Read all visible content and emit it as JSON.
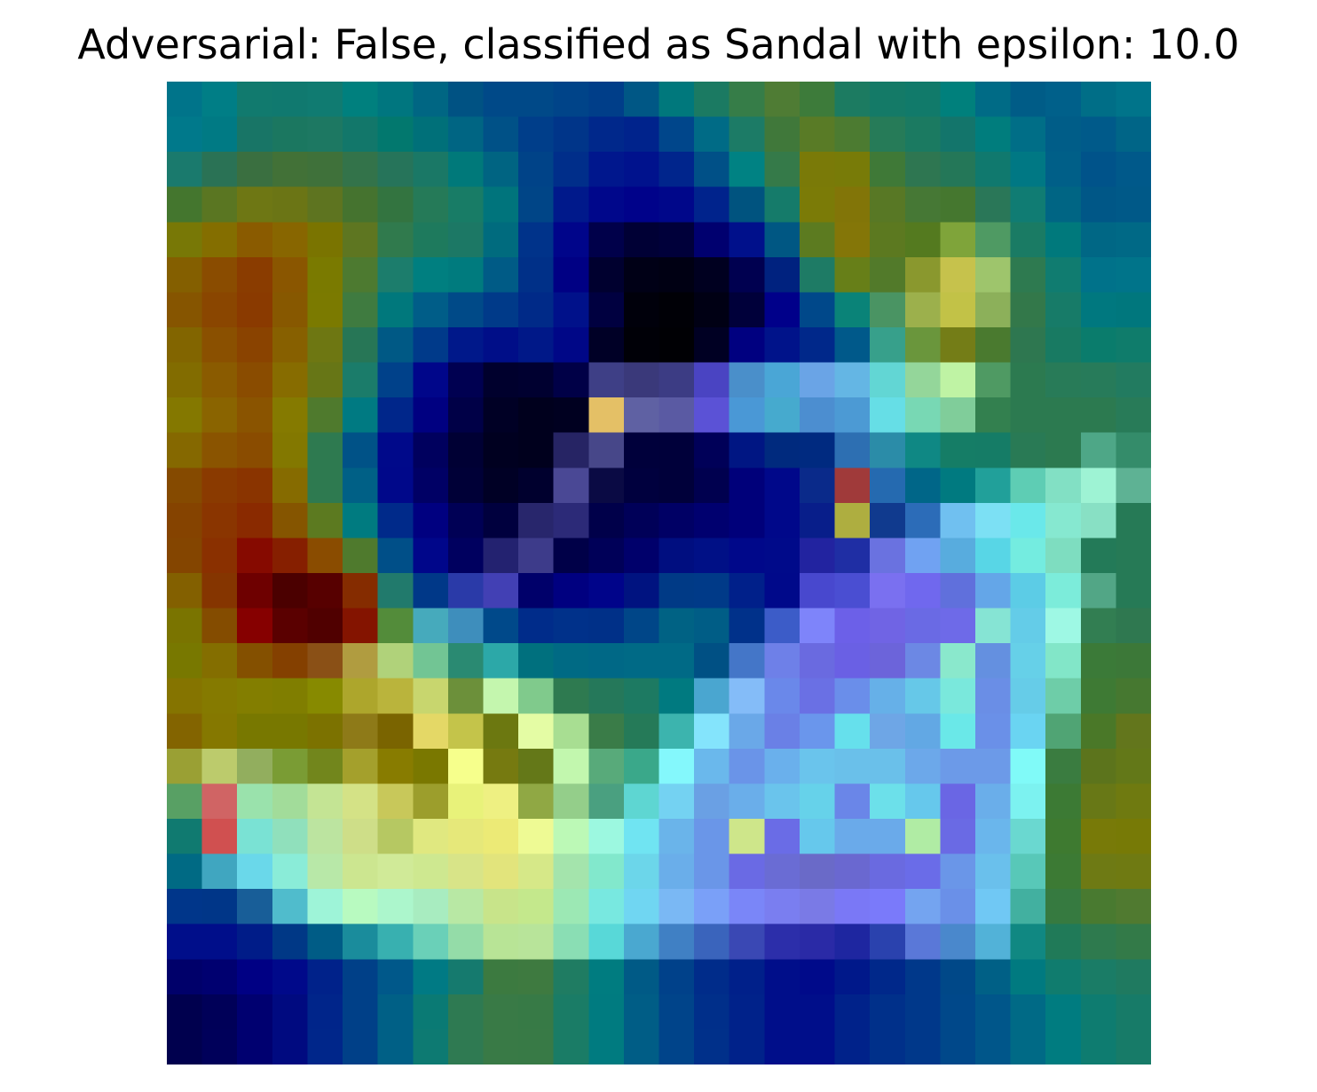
{
  "figure": {
    "title": "Adversarial: False, classified as Sandal with epsilon: 10.0"
  },
  "chart_data": {
    "type": "heatmap",
    "title": "Adversarial: False, classified as Sandal with epsilon: 10.0",
    "rows": 28,
    "cols": 28,
    "axes_visible": false,
    "colorbar": false,
    "cells": [
      [
        "#00748a",
        "#007e86",
        "#117a6e",
        "#10796f",
        "#107b71",
        "#00807e",
        "#00767f",
        "#006683",
        "#005283",
        "#004988",
        "#004988",
        "#004489",
        "#003e89",
        "#005785",
        "#00787c",
        "#1b7a62",
        "#367d48",
        "#4f7c34",
        "#3d7b3a",
        "#1c7b61",
        "#147a67",
        "#117a6a",
        "#00807c",
        "#006b86",
        "#005c87",
        "#00608a",
        "#006e87",
        "#00748a"
      ],
      [
        "#00798b",
        "#007a84",
        "#187566",
        "#1b7760",
        "#1d7862",
        "#12776a",
        "#02786e",
        "#007079",
        "#006583",
        "#005187",
        "#003e8a",
        "#003589",
        "#00288b",
        "#00238c",
        "#00468b",
        "#006b86",
        "#1c7b66",
        "#40783a",
        "#597b26",
        "#4c7b31",
        "#267b58",
        "#1b7a61",
        "#13756b",
        "#007d7d",
        "#006e87",
        "#005d88",
        "#005a8a",
        "#006587"
      ],
      [
        "#1a7a6d",
        "#2a7255",
        "#3a6f40",
        "#427137",
        "#3f713a",
        "#33734a",
        "#26745a",
        "#1a7866",
        "#00797a",
        "#006482",
        "#004388",
        "#002e8a",
        "#00178d",
        "#00128d",
        "#00258c",
        "#005087",
        "#008283",
        "#357a49",
        "#7a7a08",
        "#787b08",
        "#3f7937",
        "#2e7651",
        "#247758",
        "#10796e",
        "#007884",
        "#005f88",
        "#00538a",
        "#00598a"
      ],
      [
        "#44762e",
        "#5a7622",
        "#6e7714",
        "#6b7515",
        "#5e7420",
        "#45732f",
        "#337440",
        "#257a58",
        "#187c66",
        "#00747c",
        "#004587",
        "#00198b",
        "#00078b",
        "#00028a",
        "#00078a",
        "#00238c",
        "#00537f",
        "#157b6a",
        "#7b7b07",
        "#827508",
        "#587825",
        "#467835",
        "#45772f",
        "#2a7758",
        "#107c73",
        "#006584",
        "#005787",
        "#005988"
      ],
      [
        "#787806",
        "#846e00",
        "#8a5b00",
        "#886600",
        "#7a7400",
        "#5e7621",
        "#307a4d",
        "#1e7a5d",
        "#1c7865",
        "#006b7e",
        "#00338a",
        "#00058a",
        "#00004a",
        "#000035",
        "#00003a",
        "#00006f",
        "#00108b",
        "#005783",
        "#5c7b20",
        "#847608",
        "#5c7920",
        "#547a1f",
        "#7fa43a",
        "#4f9a63",
        "#1a7b64",
        "#00797c",
        "#006785",
        "#006986"
      ],
      [
        "#845f00",
        "#8a4c00",
        "#8a3c00",
        "#8a5600",
        "#7a7a00",
        "#4d7a30",
        "#1c7d6c",
        "#007f80",
        "#007b7e",
        "#005b86",
        "#003088",
        "#000084",
        "#00002f",
        "#000016",
        "#000013",
        "#000020",
        "#000050",
        "#00227f",
        "#1e7b65",
        "#677f18",
        "#527a2a",
        "#8a982e",
        "#c6c24c",
        "#9ec56c",
        "#2e7a50",
        "#107c70",
        "#00728a",
        "#00748a"
      ],
      [
        "#865500",
        "#8a4600",
        "#8a3a00",
        "#875800",
        "#7b7a00",
        "#3f7b40",
        "#00787c",
        "#005d88",
        "#004a88",
        "#003a89",
        "#002a88",
        "#00118a",
        "#000040",
        "#00000b",
        "#000006",
        "#000014",
        "#00003a",
        "#00008a",
        "#00488a",
        "#0a8378",
        "#4a9463",
        "#9cb04c",
        "#c2c247",
        "#8cb05a",
        "#33784a",
        "#177b68",
        "#00787f",
        "#00777d"
      ],
      [
        "#826500",
        "#8a5000",
        "#8a4300",
        "#876000",
        "#6e7712",
        "#277656",
        "#005985",
        "#003a8a",
        "#00188a",
        "#000e88",
        "#001888",
        "#000787",
        "#000026",
        "#000007",
        "#000004",
        "#000023",
        "#000080",
        "#00138a",
        "#00288a",
        "#00598a",
        "#37a08b",
        "#6a963c",
        "#747d17",
        "#4a7a2f",
        "#2e7750",
        "#187a62",
        "#0a7c6c",
        "#0f7c6b"
      ],
      [
        "#826c00",
        "#8a5b00",
        "#8a4c00",
        "#876c00",
        "#677616",
        "#1b7c6a",
        "#00418a",
        "#00068a",
        "#000051",
        "#00002d",
        "#000030",
        "#000047",
        "#3e3f86",
        "#3a397a",
        "#3c3c84",
        "#4a44c2",
        "#4a8fca",
        "#4aa6d6",
        "#6aa4e6",
        "#64b6e4",
        "#62d6d4",
        "#94d69a",
        "#bff3a4",
        "#4f9a63",
        "#2c7a50",
        "#287b58",
        "#277b5a",
        "#227b60"
      ],
      [
        "#847800",
        "#8a6400",
        "#8a5400",
        "#857a00",
        "#4f7a2d",
        "#007a82",
        "#00268a",
        "#000081",
        "#000047",
        "#000025",
        "#00001d",
        "#000020",
        "#e4c066",
        "#5f61a3",
        "#5a5aa3",
        "#5b52d6",
        "#4a98d6",
        "#46aace",
        "#4c8ed0",
        "#4c9ad4",
        "#66dee6",
        "#78d8b4",
        "#80cd9a",
        "#33804f",
        "#2c7a50",
        "#2c7a50",
        "#2c7a50",
        "#287b58"
      ],
      [
        "#856800",
        "#8a5400",
        "#8a4c00",
        "#837800",
        "#2e7a50",
        "#005287",
        "#00098a",
        "#00005e",
        "#000034",
        "#000020",
        "#00001d",
        "#262464",
        "#474789",
        "#00003b",
        "#00003a",
        "#000058",
        "#001683",
        "#002a7e",
        "#002a80",
        "#2d6fb2",
        "#2b8ca8",
        "#0f8884",
        "#157d66",
        "#157c66",
        "#297a55",
        "#2c7a50",
        "#4ea787",
        "#348c6a"
      ],
      [
        "#854a00",
        "#8a3a00",
        "#8a3400",
        "#866b00",
        "#2e7a50",
        "#006086",
        "#00088a",
        "#000065",
        "#000037",
        "#000025",
        "#00002e",
        "#4a4895",
        "#0a0a44",
        "#00003e",
        "#00003a",
        "#00004f",
        "#00007a",
        "#00088a",
        "#0a2a8a",
        "#a03a3a",
        "#256ab0",
        "#006688",
        "#007a80",
        "#21a09a",
        "#5ecdb4",
        "#82e0c4",
        "#9ef3d4",
        "#5eb294"
      ],
      [
        "#854300",
        "#8a3500",
        "#8a2a00",
        "#855500",
        "#5c7a20",
        "#007b80",
        "#002a8a",
        "#000080",
        "#000055",
        "#00003e",
        "#28266c",
        "#2c2a78",
        "#00004a",
        "#000058",
        "#000065",
        "#00006f",
        "#00007a",
        "#00088a",
        "#081e8a",
        "#aeae40",
        "#103a8e",
        "#2c6cb8",
        "#70c0f0",
        "#7ce0f4",
        "#6ae8ea",
        "#86e8d0",
        "#88e0c4",
        "#267a56"
      ],
      [
        "#844500",
        "#8a3000",
        "#860a00",
        "#861f00",
        "#8a4c00",
        "#4f7a2d",
        "#004f88",
        "#00068a",
        "#00005f",
        "#232270",
        "#3d3b8a",
        "#000048",
        "#000058",
        "#00006b",
        "#000e80",
        "#001086",
        "#00088a",
        "#000a8a",
        "#2223a0",
        "#1f2ea4",
        "#6a72e0",
        "#70a2f2",
        "#58acde",
        "#58d6e6",
        "#74ece0",
        "#7eddc0",
        "#237a58",
        "#267a56"
      ],
      [
        "#836000",
        "#853500",
        "#6e0000",
        "#4b0000",
        "#570000",
        "#852c00",
        "#217a6c",
        "#003888",
        "#2a3aa8",
        "#4240b4",
        "#00006a",
        "#000080",
        "#00048a",
        "#001380",
        "#003a86",
        "#003a88",
        "#00208a",
        "#00098a",
        "#4848ce",
        "#4a4ed2",
        "#7a70f0",
        "#7068ee",
        "#6070dc",
        "#64a6e8",
        "#5ccce6",
        "#7cecda",
        "#52a686",
        "#267a56"
      ],
      [
        "#7a7400",
        "#844c00",
        "#860000",
        "#5a0000",
        "#500000",
        "#841400",
        "#538c3a",
        "#46aabc",
        "#3e8ebc",
        "#00498a",
        "#002c8a",
        "#00318a",
        "#003088",
        "#004688",
        "#006284",
        "#005d86",
        "#00318a",
        "#3c5cc8",
        "#7e84fa",
        "#6c60e8",
        "#7064e4",
        "#6a6ae4",
        "#6e6ae8",
        "#86e4d4",
        "#64cce8",
        "#9ef8e4",
        "#327e52",
        "#2f7850"
      ],
      [
        "#787800",
        "#846e00",
        "#845000",
        "#844000",
        "#8a5016",
        "#b09c40",
        "#b0d27a",
        "#72c594",
        "#2a8a72",
        "#2ca8a8",
        "#00707e",
        "#006a84",
        "#006886",
        "#006a86",
        "#006a86",
        "#005084",
        "#4476c8",
        "#6e80e8",
        "#6a6ae0",
        "#6a60e4",
        "#6c64da",
        "#6c88e4",
        "#8ae8cc",
        "#6490e0",
        "#66d0e8",
        "#82e6c8",
        "#3b7a38",
        "#3c7838"
      ],
      [
        "#857400",
        "#857a00",
        "#837e00",
        "#807e00",
        "#878a00",
        "#ada62c",
        "#bab43c",
        "#c8d66e",
        "#6c903a",
        "#c4f6ae",
        "#80ca8c",
        "#2e7a50",
        "#25785a",
        "#1d7a62",
        "#007a80",
        "#4aa6d0",
        "#84bcf8",
        "#6a88ea",
        "#6a70e4",
        "#6a8eea",
        "#66b0e8",
        "#66c8e8",
        "#7ae8dc",
        "#6a8ee6",
        "#66cce8",
        "#6ecda8",
        "#3e7a34",
        "#467830"
      ],
      [
        "#836400",
        "#857800",
        "#787800",
        "#787800",
        "#7c7200",
        "#8e7a18",
        "#7a6400",
        "#e4d866",
        "#c4c44a",
        "#6c7810",
        "#e4fca4",
        "#a8de92",
        "#3a7c48",
        "#257a58",
        "#3cb4ae",
        "#84e4fc",
        "#6aa8e8",
        "#6a80e6",
        "#6a96ec",
        "#66e0ec",
        "#6ea6e6",
        "#62a8e4",
        "#6ae8e8",
        "#6a90e8",
        "#6ad4f2",
        "#50a474",
        "#4a7828",
        "#63761c"
      ],
      [
        "#9aa034",
        "#bccb6c",
        "#92ae5e",
        "#7a9c34",
        "#72861c",
        "#a4a02c",
        "#887c00",
        "#7a7800",
        "#f6ff8c",
        "#767a10",
        "#647818",
        "#c2f7ae",
        "#58aa7a",
        "#3aa88a",
        "#84f8fc",
        "#6ab8ec",
        "#6a94e8",
        "#6ab0ec",
        "#6ac4ec",
        "#6ac0ea",
        "#6ac0ea",
        "#6ca8ea",
        "#6c9ae8",
        "#6c9ae8",
        "#80faf8",
        "#3a7c40",
        "#5c741c",
        "#637818"
      ],
      [
        "#58a064",
        "#d06464",
        "#9ae2ac",
        "#a2dc9a",
        "#c4e494",
        "#d4e286",
        "#c8c85a",
        "#9c9e2c",
        "#e8f27a",
        "#eef082",
        "#90a844",
        "#94ce8a",
        "#4aa080",
        "#5ed6d2",
        "#74d2f2",
        "#6aa0e4",
        "#6aaeea",
        "#6ac4ec",
        "#66d2ea",
        "#6a86e8",
        "#6ce0ea",
        "#66c8ec",
        "#6a66e4",
        "#6aaeea",
        "#7cf2f0",
        "#3c7a34",
        "#687816",
        "#6f7a10"
      ],
      [
        "#107a70",
        "#d05050",
        "#7ae2d4",
        "#90e0bc",
        "#bce4a0",
        "#cede88",
        "#b6c862",
        "#e0e880",
        "#e6e87a",
        "#ecea76",
        "#eefa94",
        "#bcf9b6",
        "#9cf8e0",
        "#70e4f2",
        "#6ab4ea",
        "#6a96e8",
        "#cee68a",
        "#6a6ce6",
        "#66c8ec",
        "#6aaaea",
        "#6aaaea",
        "#b0eca4",
        "#6a6ae4",
        "#6ab6ec",
        "#6ad8d0",
        "#3e7a30",
        "#787a08",
        "#777a06"
      ],
      [
        "#006a84",
        "#40a6c0",
        "#6ad8ea",
        "#8aecd8",
        "#b8e8a8",
        "#cce690",
        "#d0ea98",
        "#cee890",
        "#d8e488",
        "#e2e47c",
        "#d6e888",
        "#a4e4ac",
        "#82e8cc",
        "#6cd6ea",
        "#6aaeea",
        "#6a96e8",
        "#6a6ae4",
        "#6a6cd4",
        "#6a6ac8",
        "#6a68d0",
        "#6a6ae0",
        "#6a6ce8",
        "#6a96e8",
        "#6ac0ec",
        "#58c8b8",
        "#3c7a34",
        "#6e7a14",
        "#6f7a12"
      ],
      [
        "#00368a",
        "#003688",
        "#185e98",
        "#50bccc",
        "#9ef4d8",
        "#b8fac0",
        "#acf6cc",
        "#a8ecc0",
        "#b8e8a4",
        "#c8e48a",
        "#c4e88c",
        "#9ce8b4",
        "#78e8e0",
        "#70d6f2",
        "#7ab8f4",
        "#7aa0f8",
        "#7a86f8",
        "#7a7ef0",
        "#7a7ae6",
        "#7a78f6",
        "#7a7afa",
        "#74a4f0",
        "#6a90e8",
        "#70c8f4",
        "#42b0a0",
        "#367a40",
        "#497a30",
        "#507a30"
      ],
      [
        "#000e8a",
        "#000e8a",
        "#001c88",
        "#003886",
        "#005c86",
        "#1a8c9c",
        "#38b0b0",
        "#6ad0b8",
        "#94dca8",
        "#b8e496",
        "#b8e49a",
        "#8ade b4",
        "#58d8d8",
        "#4aa8d0",
        "#4080c4",
        "#3a64bc",
        "#3a48b4",
        "#2c2eaa",
        "#2a2aa6",
        "#1e26a0",
        "#2a42ae",
        "#5a78d8",
        "#4a88cc",
        "#52b2d8",
        "#108882",
        "#207a58",
        "#2e7a4e",
        "#337a48"
      ],
      [
        "#00006a",
        "#000070",
        "#000084",
        "#00098a",
        "#00228a",
        "#004088",
        "#00588a",
        "#007a84",
        "#157a6e",
        "#3c7a40",
        "#3e7a40",
        "#1f7c62",
        "#007c80",
        "#005a86",
        "#00418a",
        "#002c8a",
        "#00208a",
        "#000e8a",
        "#000a8a",
        "#00188a",
        "#00288a",
        "#00388a",
        "#004888",
        "#006086",
        "#007a80",
        "#107c6e",
        "#1a7c66",
        "#1f7a60"
      ],
      [
        "#00004e",
        "#000058",
        "#000070",
        "#000a80",
        "#00258a",
        "#004088",
        "#006086",
        "#0a7a74",
        "#2e7a52",
        "#397a46",
        "#377a46",
        "#1a7c66",
        "#007b80",
        "#005d86",
        "#00448a",
        "#002f8a",
        "#00228a",
        "#000e8a",
        "#000e8a",
        "#00228a",
        "#00308a",
        "#00388a",
        "#00488a",
        "#00568a",
        "#006a86",
        "#007c80",
        "#0e7c70",
        "#177b68"
      ],
      [
        "#00004e",
        "#00005a",
        "#000070",
        "#000a80",
        "#00268a",
        "#004088",
        "#006086",
        "#0d7a72",
        "#2f7a52",
        "#397a46",
        "#387a46",
        "#1a7c66",
        "#007b80",
        "#005d86",
        "#00448a",
        "#00308a",
        "#00228a",
        "#000e8a",
        "#000e8a",
        "#00228a",
        "#00308a",
        "#00388a",
        "#00488a",
        "#00568a",
        "#006a86",
        "#007c80",
        "#0e7c70",
        "#177b68"
      ]
    ]
  }
}
